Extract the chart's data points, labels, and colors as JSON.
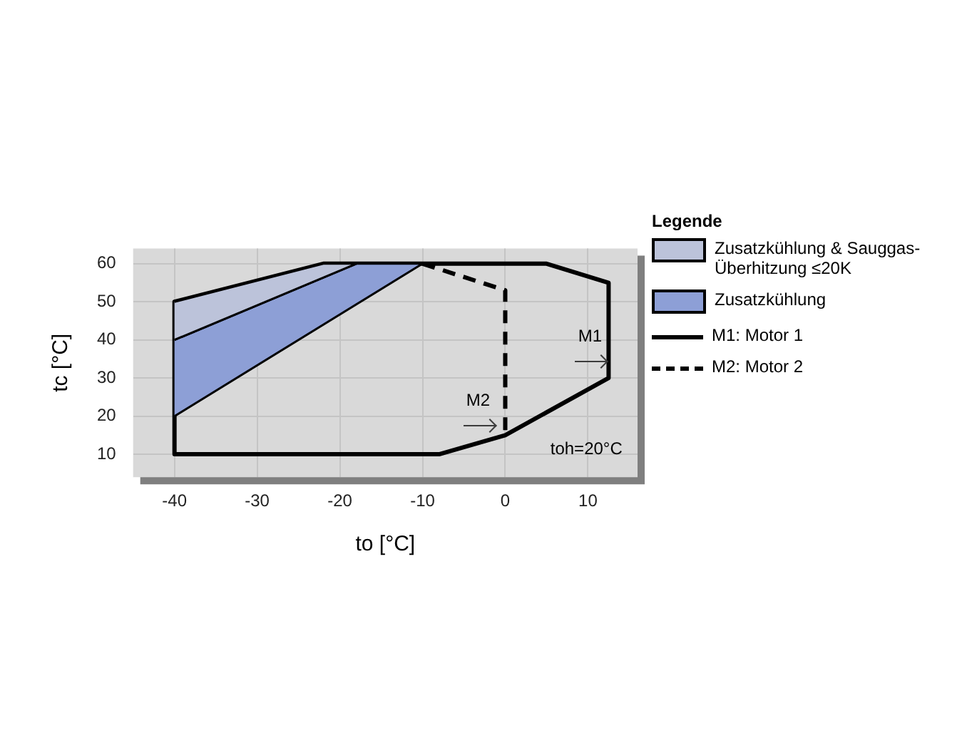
{
  "chart_data": {
    "type": "line",
    "xlabel": "to [°C]",
    "ylabel": "tc [°C]",
    "legend_title": "Legende",
    "legend": "right",
    "grid": true,
    "xlim": [
      -45,
      16
    ],
    "xticks": [
      -40,
      -30,
      -20,
      -10,
      0,
      10
    ],
    "ylim": [
      4,
      64
    ],
    "yticks": [
      10,
      20,
      30,
      40,
      50,
      60
    ],
    "series": [
      {
        "name": "Zusatzkühlung & Sauggas-Überhitzung ≤20K",
        "type": "area",
        "color": "#bcc3da",
        "x": [
          -40,
          -22,
          -18,
          -40
        ],
        "values": [
          50,
          60,
          60,
          40
        ]
      },
      {
        "name": "Zusatzkühlung",
        "type": "area",
        "color": "#8d9fd6",
        "x": [
          -40,
          -18,
          -10,
          -40
        ],
        "values": [
          40,
          60,
          60,
          20
        ]
      },
      {
        "name": "M1: Motor 1",
        "color": "#000000",
        "line_style": "solid",
        "x": [
          -40,
          -40,
          -8,
          0,
          12.5,
          12.5,
          5,
          -22,
          -40,
          -40
        ],
        "values": [
          50,
          10,
          10,
          15,
          30,
          55,
          60,
          60,
          50,
          10
        ]
      },
      {
        "name": "M2: Motor 2",
        "color": "#000000",
        "line_style": "dashed",
        "x": [
          -10,
          0,
          0
        ],
        "values": [
          60,
          53,
          15
        ]
      }
    ],
    "annotations": [
      "M1",
      "M2",
      "toh=20°C"
    ]
  }
}
